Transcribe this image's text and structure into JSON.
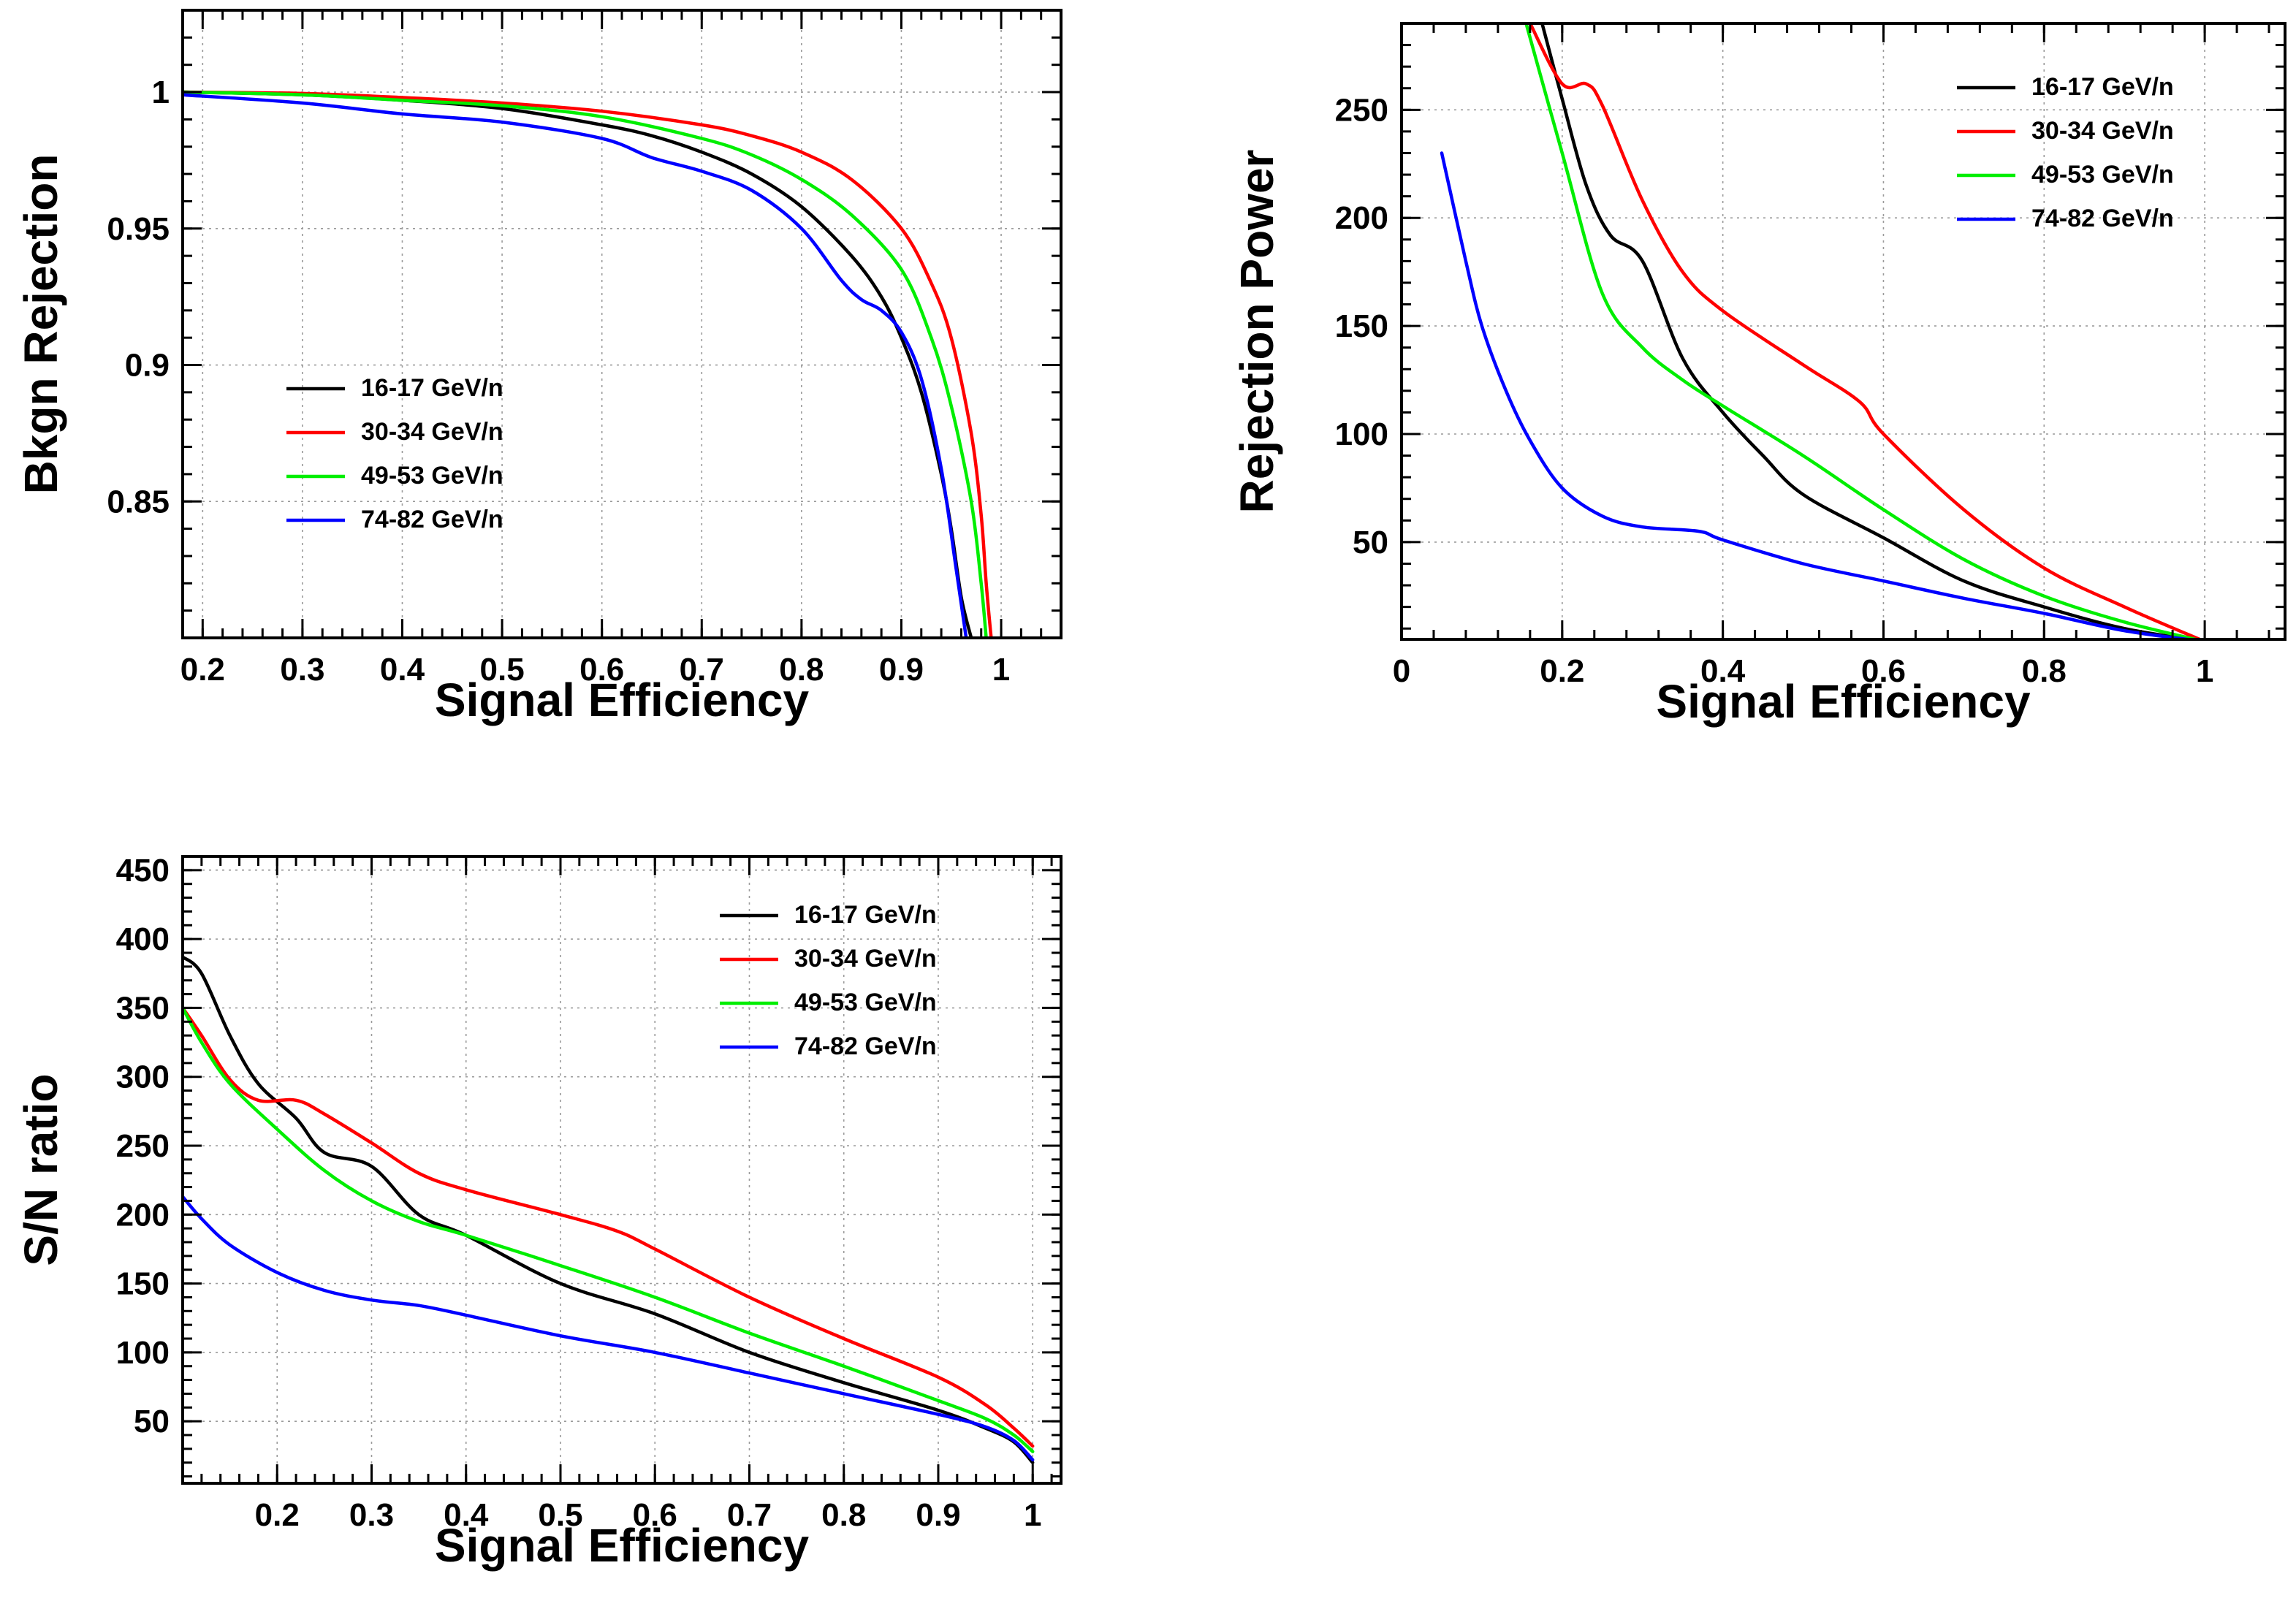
{
  "chart_data": [
    {
      "type": "line",
      "id": "bkgn",
      "title": "",
      "xlabel": "Signal Efficiency",
      "ylabel": "Bkgn Rejection",
      "xlim": [
        0.18,
        1.06
      ],
      "ylim": [
        0.8,
        1.03
      ],
      "xticks": [
        0.2,
        0.3,
        0.4,
        0.5,
        0.6,
        0.7,
        0.8,
        0.9,
        1
      ],
      "xtick_labels": [
        "0.2",
        "0.3",
        "0.4",
        "0.5",
        "0.6",
        "0.7",
        "0.8",
        "0.9",
        "1"
      ],
      "yticks": [
        0.85,
        0.9,
        0.95,
        1
      ],
      "ytick_labels": [
        "0.85",
        "0.9",
        "0.95",
        "1"
      ],
      "grid": true,
      "legend_position": "middle-left",
      "series": [
        {
          "name": "16-17 GeV/n",
          "color": "#000000",
          "x": [
            0.18,
            0.3,
            0.4,
            0.5,
            0.6,
            0.65,
            0.7,
            0.75,
            0.8,
            0.85,
            0.88,
            0.9,
            0.92,
            0.94,
            0.95,
            0.96,
            0.97
          ],
          "y": [
            1.0,
            0.999,
            0.997,
            0.994,
            0.988,
            0.984,
            0.978,
            0.97,
            0.958,
            0.94,
            0.925,
            0.91,
            0.89,
            0.86,
            0.84,
            0.815,
            0.8
          ]
        },
        {
          "name": "30-34 GeV/n",
          "color": "#ff0000",
          "x": [
            0.18,
            0.3,
            0.4,
            0.5,
            0.6,
            0.7,
            0.75,
            0.8,
            0.85,
            0.9,
            0.93,
            0.95,
            0.97,
            0.98,
            0.985,
            0.99
          ],
          "y": [
            1.0,
            0.9995,
            0.998,
            0.996,
            0.993,
            0.988,
            0.984,
            0.978,
            0.968,
            0.95,
            0.93,
            0.91,
            0.875,
            0.845,
            0.82,
            0.8
          ]
        },
        {
          "name": "49-53 GeV/n",
          "color": "#00ee00",
          "x": [
            0.18,
            0.3,
            0.4,
            0.5,
            0.6,
            0.7,
            0.75,
            0.8,
            0.85,
            0.9,
            0.93,
            0.95,
            0.97,
            0.98,
            0.985
          ],
          "y": [
            1.0,
            0.999,
            0.997,
            0.995,
            0.991,
            0.983,
            0.977,
            0.968,
            0.955,
            0.935,
            0.91,
            0.885,
            0.85,
            0.82,
            0.8
          ]
        },
        {
          "name": "74-82 GeV/n",
          "color": "#0000ff",
          "x": [
            0.18,
            0.3,
            0.4,
            0.5,
            0.6,
            0.65,
            0.7,
            0.75,
            0.8,
            0.84,
            0.86,
            0.88,
            0.9,
            0.92,
            0.94,
            0.955,
            0.965
          ],
          "y": [
            0.999,
            0.996,
            0.992,
            0.989,
            0.983,
            0.976,
            0.971,
            0.964,
            0.95,
            0.931,
            0.924,
            0.92,
            0.912,
            0.895,
            0.862,
            0.825,
            0.8
          ]
        }
      ]
    },
    {
      "type": "line",
      "id": "rejection",
      "title": "",
      "xlabel": "Signal Efficiency",
      "ylabel": "Rejection Power",
      "xlim": [
        0,
        1.1
      ],
      "ylim": [
        5,
        290
      ],
      "xticks": [
        0,
        0.2,
        0.4,
        0.6,
        0.8,
        1
      ],
      "xtick_labels": [
        "0",
        "0.2",
        "0.4",
        "0.6",
        "0.8",
        "1"
      ],
      "yticks": [
        50,
        100,
        150,
        200,
        250
      ],
      "ytick_labels": [
        "50",
        "100",
        "150",
        "200",
        "250"
      ],
      "grid": true,
      "legend_position": "top-right",
      "series": [
        {
          "name": "16-17 GeV/n",
          "color": "#000000",
          "x": [
            0.175,
            0.2,
            0.23,
            0.26,
            0.3,
            0.35,
            0.4,
            0.45,
            0.5,
            0.6,
            0.7,
            0.8,
            0.9,
            1.0
          ],
          "y": [
            290,
            255,
            215,
            192,
            180,
            135,
            110,
            90,
            72,
            52,
            32,
            20,
            10,
            4
          ]
        },
        {
          "name": "30-34 GeV/n",
          "color": "#ff0000",
          "x": [
            0.16,
            0.2,
            0.23,
            0.25,
            0.3,
            0.35,
            0.4,
            0.5,
            0.57,
            0.6,
            0.7,
            0.8,
            0.9,
            1.0
          ],
          "y": [
            290,
            262,
            262,
            252,
            208,
            175,
            157,
            132,
            115,
            100,
            65,
            38,
            20,
            4
          ]
        },
        {
          "name": "49-53 GeV/n",
          "color": "#00ee00",
          "x": [
            0.155,
            0.2,
            0.25,
            0.3,
            0.35,
            0.4,
            0.5,
            0.6,
            0.7,
            0.8,
            0.9,
            1.0
          ],
          "y": [
            290,
            230,
            165,
            140,
            125,
            113,
            90,
            65,
            42,
            25,
            13,
            4
          ]
        },
        {
          "name": "74-82 GeV/n",
          "color": "#0000ff",
          "x": [
            0.05,
            0.08,
            0.1,
            0.13,
            0.16,
            0.2,
            0.25,
            0.3,
            0.37,
            0.4,
            0.5,
            0.6,
            0.7,
            0.8,
            0.9,
            1.0
          ],
          "y": [
            230,
            180,
            150,
            120,
            97,
            75,
            62,
            57,
            55,
            51,
            40,
            32,
            24,
            17,
            9,
            4
          ]
        }
      ]
    },
    {
      "type": "line",
      "id": "sn",
      "title": "",
      "xlabel": "Signal Efficiency",
      "ylabel": "S/N ratio",
      "xlim": [
        0.1,
        1.03
      ],
      "ylim": [
        5,
        460
      ],
      "xticks": [
        0.2,
        0.3,
        0.4,
        0.5,
        0.6,
        0.7,
        0.8,
        0.9,
        1
      ],
      "xtick_labels": [
        "0.2",
        "0.3",
        "0.4",
        "0.5",
        "0.6",
        "0.7",
        "0.8",
        "0.9",
        "1"
      ],
      "yticks": [
        50,
        100,
        150,
        200,
        250,
        300,
        350,
        400,
        450
      ],
      "ytick_labels": [
        "50",
        "100",
        "150",
        "200",
        "250",
        "300",
        "350",
        "400",
        "450"
      ],
      "grid": true,
      "legend_position": "top-right",
      "series": [
        {
          "name": "16-17 GeV/n",
          "color": "#000000",
          "x": [
            0.1,
            0.12,
            0.15,
            0.18,
            0.22,
            0.25,
            0.3,
            0.35,
            0.4,
            0.5,
            0.6,
            0.7,
            0.8,
            0.9,
            0.95,
            0.98,
            1.0
          ],
          "y": [
            387,
            375,
            330,
            295,
            270,
            245,
            235,
            200,
            185,
            150,
            128,
            100,
            78,
            58,
            45,
            35,
            20
          ]
        },
        {
          "name": "30-34 GeV/n",
          "color": "#ff0000",
          "x": [
            0.1,
            0.12,
            0.15,
            0.18,
            0.22,
            0.25,
            0.3,
            0.35,
            0.4,
            0.5,
            0.56,
            0.6,
            0.7,
            0.8,
            0.9,
            0.95,
            0.98,
            1.0
          ],
          "y": [
            350,
            330,
            298,
            283,
            283,
            273,
            252,
            230,
            218,
            200,
            188,
            175,
            140,
            110,
            82,
            62,
            45,
            32
          ]
        },
        {
          "name": "49-53 GeV/n",
          "color": "#00ee00",
          "x": [
            0.1,
            0.12,
            0.15,
            0.2,
            0.25,
            0.3,
            0.35,
            0.4,
            0.5,
            0.6,
            0.7,
            0.8,
            0.9,
            0.95,
            0.98,
            1.0
          ],
          "y": [
            350,
            325,
            295,
            262,
            232,
            210,
            195,
            185,
            163,
            140,
            114,
            90,
            65,
            52,
            40,
            28
          ]
        },
        {
          "name": "74-82 GeV/n",
          "color": "#0000ff",
          "x": [
            0.1,
            0.12,
            0.15,
            0.2,
            0.25,
            0.3,
            0.35,
            0.4,
            0.5,
            0.6,
            0.7,
            0.8,
            0.9,
            0.95,
            0.98,
            1.0
          ],
          "y": [
            213,
            197,
            178,
            158,
            145,
            138,
            134,
            127,
            112,
            100,
            85,
            70,
            55,
            46,
            36,
            22
          ]
        }
      ]
    }
  ]
}
